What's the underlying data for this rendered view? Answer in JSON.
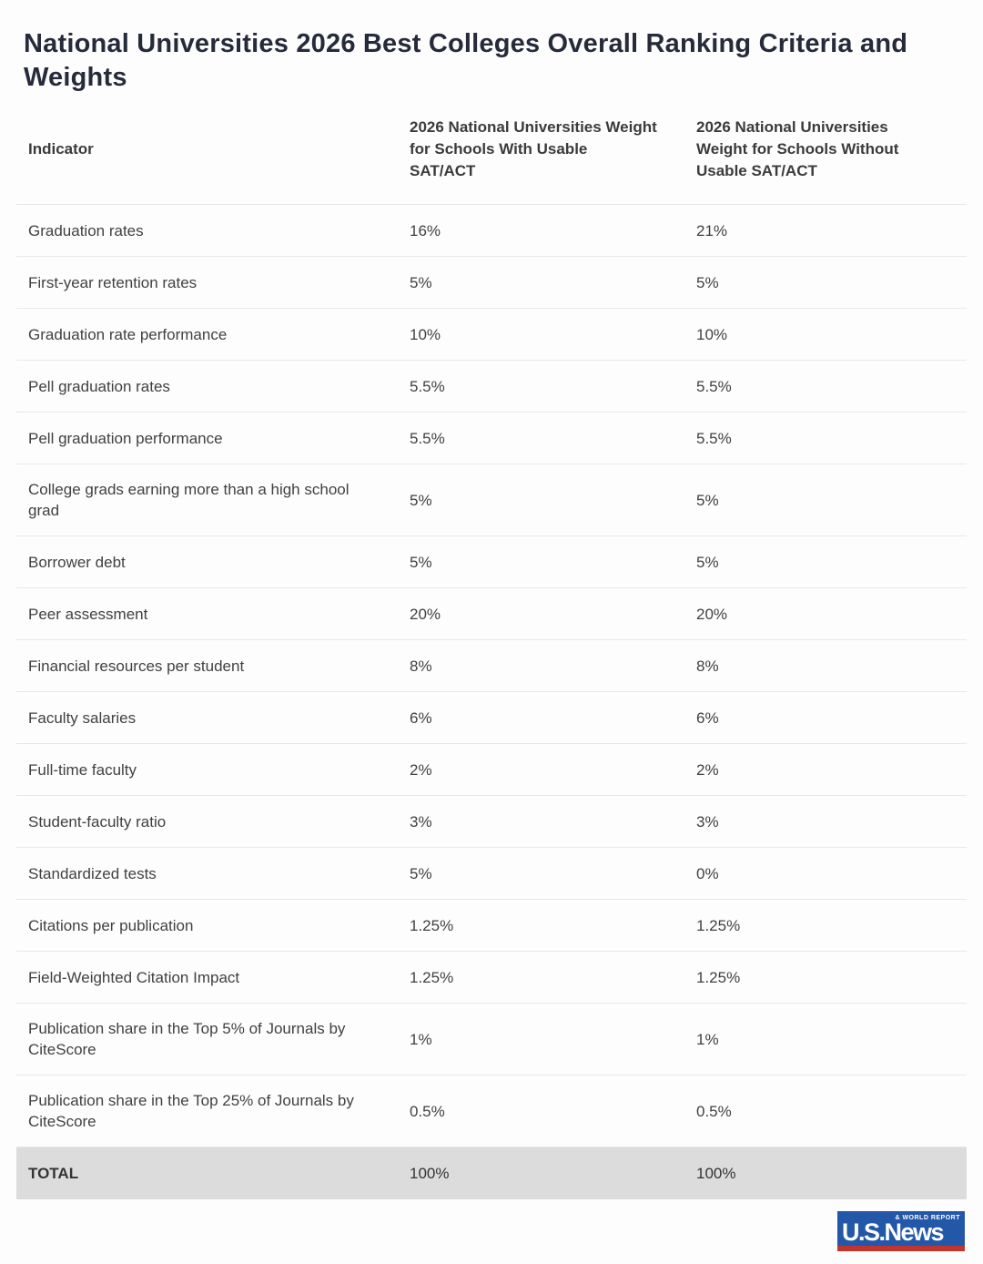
{
  "title": "National Universities 2026 Best Colleges Overall Ranking Criteria and Weights",
  "table": {
    "columns": [
      "Indicator",
      "2026 National Universities Weight for Schools With Usable SAT/ACT",
      "2026 National Universities Weight for Schools Without Usable SAT/ACT"
    ],
    "rows": [
      {
        "indicator": "Graduation rates",
        "with_sat": "16%",
        "without_sat": "21%"
      },
      {
        "indicator": "First-year retention rates",
        "with_sat": "5%",
        "without_sat": "5%"
      },
      {
        "indicator": "Graduation rate performance",
        "with_sat": "10%",
        "without_sat": "10%"
      },
      {
        "indicator": "Pell graduation rates",
        "with_sat": "5.5%",
        "without_sat": "5.5%"
      },
      {
        "indicator": "Pell graduation performance",
        "with_sat": "5.5%",
        "without_sat": "5.5%"
      },
      {
        "indicator": "College grads earning more than a high school grad",
        "with_sat": "5%",
        "without_sat": "5%"
      },
      {
        "indicator": "Borrower debt",
        "with_sat": "5%",
        "without_sat": "5%"
      },
      {
        "indicator": "Peer assessment",
        "with_sat": "20%",
        "without_sat": "20%"
      },
      {
        "indicator": "Financial resources per student",
        "with_sat": "8%",
        "without_sat": "8%"
      },
      {
        "indicator": "Faculty salaries",
        "with_sat": "6%",
        "without_sat": "6%"
      },
      {
        "indicator": "Full-time faculty",
        "with_sat": "2%",
        "without_sat": "2%"
      },
      {
        "indicator": "Student-faculty ratio",
        "with_sat": "3%",
        "without_sat": "3%"
      },
      {
        "indicator": "Standardized tests",
        "with_sat": "5%",
        "without_sat": "0%"
      },
      {
        "indicator": "Citations per publication",
        "with_sat": "1.25%",
        "without_sat": "1.25%"
      },
      {
        "indicator": "Field-Weighted Citation Impact",
        "with_sat": "1.25%",
        "without_sat": "1.25%"
      },
      {
        "indicator": "Publication share in the Top 5% of Journals by CiteScore",
        "with_sat": "1%",
        "without_sat": "1%"
      },
      {
        "indicator": "Publication share in the Top 25% of Journals by CiteScore",
        "with_sat": "0.5%",
        "without_sat": "0.5%"
      }
    ],
    "total": {
      "label": "TOTAL",
      "with_sat": "100%",
      "without_sat": "100%"
    }
  },
  "logo": {
    "brand": "U.S.News",
    "tagline": "& WORLD REPORT"
  },
  "colors": {
    "title_text": "#262b3b",
    "body_text": "#414141",
    "row_border": "#e8e8e8",
    "total_row_bg": "#dcdcdc",
    "logo_blue": "#2358a8",
    "logo_red": "#c2342e"
  }
}
